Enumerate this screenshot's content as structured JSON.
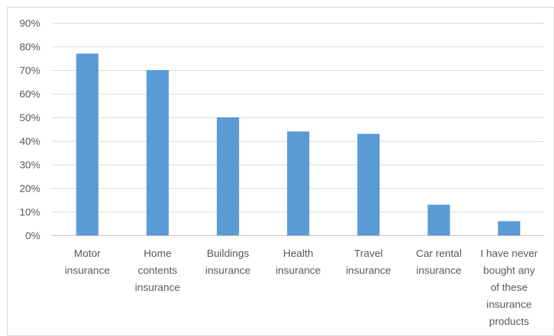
{
  "chart_data": {
    "type": "bar",
    "title": "",
    "xlabel": "",
    "ylabel": "",
    "categories": [
      [
        "Motor",
        "insurance"
      ],
      [
        "Home",
        "contents",
        "insurance"
      ],
      [
        "Buildings",
        "insurance"
      ],
      [
        "Health",
        "insurance"
      ],
      [
        "Travel",
        "insurance"
      ],
      [
        "Car rental",
        "insurance"
      ],
      [
        "I have never",
        "bought any",
        "of these",
        "insurance",
        "products"
      ]
    ],
    "values": [
      0.77,
      0.7,
      0.5,
      0.44,
      0.43,
      0.13,
      0.06
    ],
    "ylim": [
      0,
      0.9
    ],
    "yticks": [
      0,
      0.1,
      0.2,
      0.3,
      0.4,
      0.5,
      0.6,
      0.7,
      0.8,
      0.9
    ],
    "ytick_labels": [
      "0%",
      "10%",
      "20%",
      "30%",
      "40%",
      "50%",
      "60%",
      "70%",
      "80%",
      "90%"
    ],
    "grid": true,
    "legend": "none",
    "colors": {
      "bar": "#5b9bd5",
      "grid": "#d9d9d9",
      "axis": "#bfbfbf",
      "text": "#595959",
      "border": "#d9d9d9"
    }
  }
}
